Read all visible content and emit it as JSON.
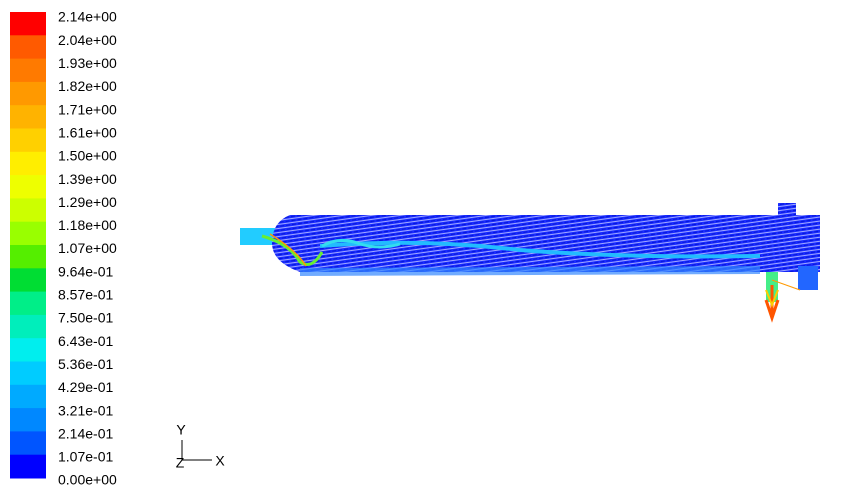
{
  "colorbar": {
    "labels": [
      "2.14e+00",
      "2.04e+00",
      "1.93e+00",
      "1.82e+00",
      "1.71e+00",
      "1.61e+00",
      "1.50e+00",
      "1.39e+00",
      "1.29e+00",
      "1.18e+00",
      "1.07e+00",
      "9.64e-01",
      "8.57e-01",
      "7.50e-01",
      "6.43e-01",
      "5.36e-01",
      "4.29e-01",
      "3.21e-01",
      "2.14e-01",
      "1.07e-01",
      "0.00e+00"
    ],
    "colors": [
      "#ff0000",
      "#ff5a00",
      "#ff7a00",
      "#ff9900",
      "#ffb300",
      "#ffd000",
      "#ffee00",
      "#eeff00",
      "#ccff00",
      "#99ff00",
      "#55ee00",
      "#00dd33",
      "#00ee88",
      "#00eebb",
      "#00eeee",
      "#00ccff",
      "#00aaff",
      "#0088ff",
      "#0055ff",
      "#0000ff"
    ]
  },
  "axes": {
    "y": "Y",
    "x": "X",
    "z": "Z"
  }
}
